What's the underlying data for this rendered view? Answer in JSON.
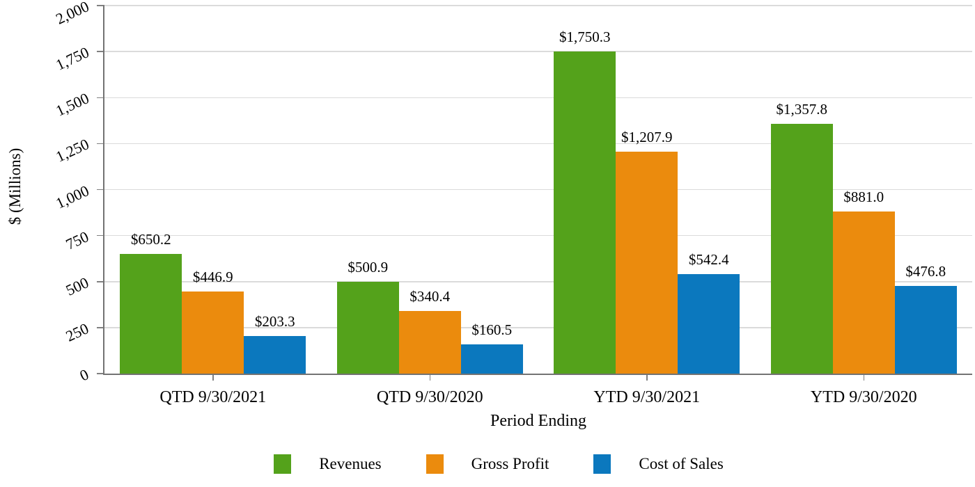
{
  "chart_data": {
    "type": "bar",
    "categories": [
      "QTD 9/30/2021",
      "QTD 9/30/2020",
      "YTD 9/30/2021",
      "YTD 9/30/2020"
    ],
    "series": [
      {
        "name": "Revenues",
        "color": "#54A21B",
        "values": [
          650.2,
          500.9,
          1750.3,
          1357.8
        ],
        "labels": [
          "$650.2",
          "$500.9",
          "$1,750.3",
          "$1,357.8"
        ]
      },
      {
        "name": "Gross Profit",
        "color": "#EB8B0D",
        "values": [
          446.9,
          340.4,
          1207.9,
          881.0
        ],
        "labels": [
          "$446.9",
          "$340.4",
          "$1,207.9",
          "$881.0"
        ]
      },
      {
        "name": "Cost of Sales",
        "color": "#0B78BE",
        "values": [
          203.3,
          160.5,
          542.4,
          476.8
        ],
        "labels": [
          "$203.3",
          "$160.5",
          "$542.4",
          "$476.8"
        ]
      }
    ],
    "xlabel": "Period Ending",
    "ylabel": "$ (Millions)",
    "ylim": [
      0,
      2000
    ],
    "yticks": {
      "values": [
        0,
        250,
        500,
        750,
        1000,
        1250,
        1500,
        1750,
        2000
      ],
      "labels": [
        "0",
        "250",
        "500",
        "750",
        "1,000",
        "1,250",
        "1,500",
        "1,750",
        "2,000"
      ]
    },
    "grid": true,
    "legend_position": "bottom"
  },
  "colors": {
    "background": "#FFFFFF",
    "axis": "#737373",
    "tick": "#808080",
    "gridline": "#DBDBDB",
    "text": "#000000"
  }
}
